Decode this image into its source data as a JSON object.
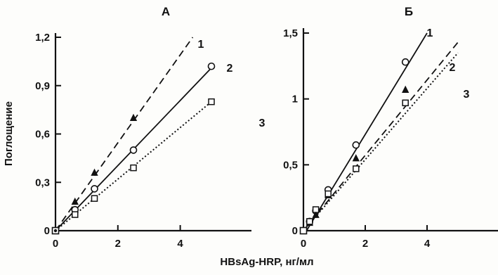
{
  "chart_data": [
    {
      "type": "line",
      "title": "А",
      "ylabel": "Поглощение",
      "xlabel": "HBsAg-HRP, нг/мл",
      "xlim": [
        0,
        5
      ],
      "ylim": [
        0,
        1.2
      ],
      "xticks": [
        0,
        2,
        4
      ],
      "xtick_labels": [
        "0",
        "2",
        "4"
      ],
      "yticks": [
        0,
        0.3,
        0.6,
        0.9,
        1.2
      ],
      "ytick_labels": [
        "0",
        "0,3",
        "0,6",
        "0,9",
        "1,2"
      ],
      "grid": false,
      "series": [
        {
          "name": "1",
          "line_style": "dashed",
          "marker": "filled-triangle",
          "x": [
            0,
            0.625,
            1.25,
            2.5
          ],
          "y": [
            0,
            0.18,
            0.36,
            0.7
          ],
          "fit_end": [
            4.4,
            1.2
          ]
        },
        {
          "name": "2",
          "line_style": "solid",
          "marker": "open-circle",
          "x": [
            0,
            0.625,
            1.25,
            2.5,
            5.0
          ],
          "y": [
            0,
            0.13,
            0.26,
            0.5,
            1.02
          ],
          "fit_end": [
            5.0,
            1.01
          ]
        },
        {
          "name": "3",
          "line_style": "dotted",
          "marker": "open-square",
          "x": [
            0,
            0.625,
            1.25,
            2.5,
            5.0
          ],
          "y": [
            0,
            0.1,
            0.2,
            0.39,
            0.8
          ],
          "fit_end": [
            5.0,
            0.8
          ]
        }
      ]
    },
    {
      "type": "line",
      "title": "Б",
      "ylabel": "",
      "xlabel": "HBsAg-HRP, нг/мл",
      "xlim": [
        0,
        5
      ],
      "ylim": [
        0,
        1.5
      ],
      "xticks": [
        0,
        2,
        4
      ],
      "xtick_labels": [
        "0",
        "2",
        "4"
      ],
      "yticks": [
        0,
        0.5,
        1.0,
        1.5
      ],
      "ytick_labels": [
        "0",
        "0,5",
        "1",
        "1,5"
      ],
      "grid": false,
      "series": [
        {
          "name": "1",
          "line_style": "solid",
          "marker": "open-circle",
          "x": [
            0,
            0.2,
            0.4,
            0.8,
            1.7,
            3.3
          ],
          "y": [
            0,
            0.07,
            0.15,
            0.31,
            0.65,
            1.28
          ],
          "fit_start": [
            0.1,
            0.0
          ],
          "fit_end": [
            4.0,
            1.5
          ]
        },
        {
          "name": "2",
          "line_style": "dashed",
          "marker": "filled-triangle",
          "x": [
            0,
            0.2,
            0.4,
            0.8,
            1.7,
            3.3
          ],
          "y": [
            0,
            0.06,
            0.12,
            0.27,
            0.55,
            1.07
          ],
          "fit_start": [
            0.0,
            0.0
          ],
          "fit_end": [
            5.0,
            1.43
          ]
        },
        {
          "name": "3",
          "line_style": "dotted",
          "marker": "open-square",
          "x": [
            0,
            0.2,
            0.4,
            0.8,
            1.7,
            3.3
          ],
          "y": [
            0,
            0.07,
            0.16,
            0.28,
            0.47,
            0.97
          ],
          "fit_start": [
            0.0,
            0.0
          ],
          "fit_end": [
            5.0,
            1.35
          ]
        }
      ]
    }
  ],
  "figure": {
    "shared_xlabel": "HBsAg-HRP, нг/мл"
  }
}
